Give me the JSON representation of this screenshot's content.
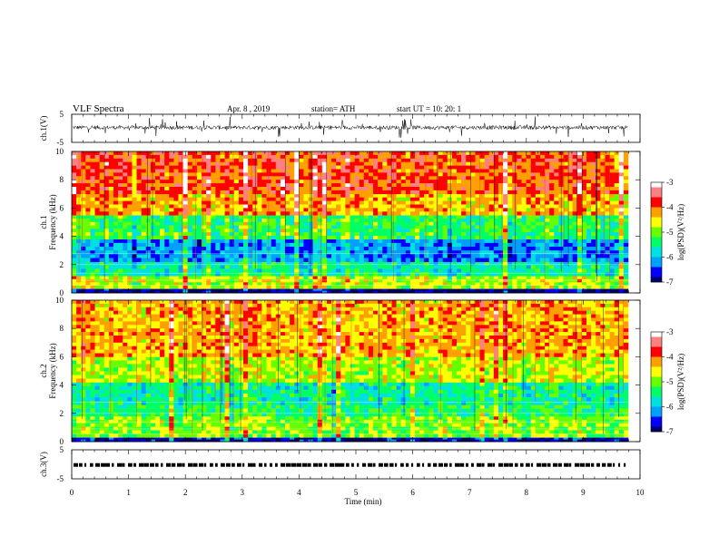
{
  "header": {
    "title": "VLF  Spectra",
    "date": "Apr. 8  , 2019",
    "station": "station= ATH",
    "start": "start  UT  =    10: 20: 1"
  },
  "colors": {
    "scale": [
      "#000066",
      "#0000ff",
      "#00a0ff",
      "#00e0e0",
      "#00ff66",
      "#66ff00",
      "#ffff00",
      "#ffa000",
      "#ff0000",
      "#ff8080",
      "#ffffff"
    ]
  },
  "chart_data": [
    {
      "type": "line",
      "panel": "ch1-waveform",
      "ylabel": "ch.1(V)",
      "ylim": [
        -5,
        5
      ],
      "yticks": [
        "5",
        "-5"
      ],
      "xlim": [
        0,
        10
      ],
      "series": [
        {
          "description": "noisy waveform centered near 0 V",
          "values": [
            0.2,
            -0.4,
            0.5,
            -0.3,
            0.1,
            0.6,
            -0.5,
            0.2,
            -0.1,
            0.4
          ]
        }
      ]
    },
    {
      "type": "heatmap",
      "panel": "ch1-spectrogram",
      "ylabel": "ch.1\nFrequency  (kHz)",
      "ylim": [
        0,
        10
      ],
      "yticks": [
        "0",
        "2",
        "4",
        "6",
        "8",
        "10"
      ],
      "xlim": [
        0,
        10
      ],
      "colorbar": {
        "label": "log(PSD)(V²/Hz)",
        "range": [
          -7,
          -3
        ],
        "ticks": [
          "-3",
          "-4",
          "-5",
          "-6",
          "-7"
        ]
      },
      "bands": [
        {
          "from_khz": 0,
          "to_khz": 0.3,
          "log_psd": -7.0
        },
        {
          "from_khz": 0.3,
          "to_khz": 1.2,
          "log_psd": -4.8
        },
        {
          "from_khz": 1.2,
          "to_khz": 2.2,
          "log_psd": -5.6
        },
        {
          "from_khz": 2.2,
          "to_khz": 3.8,
          "log_psd": -6.2
        },
        {
          "from_khz": 3.8,
          "to_khz": 5.5,
          "log_psd": -5.3
        },
        {
          "from_khz": 5.5,
          "to_khz": 7.0,
          "log_psd": -4.3
        },
        {
          "from_khz": 7.0,
          "to_khz": 10.0,
          "log_psd": -3.9
        }
      ]
    },
    {
      "type": "heatmap",
      "panel": "ch2-spectrogram",
      "ylabel": "ch.2\nFrequency  (kHz)",
      "ylim": [
        0,
        10
      ],
      "yticks": [
        "0",
        "2",
        "4",
        "6",
        "8",
        "10"
      ],
      "xlim": [
        0,
        10
      ],
      "colorbar": {
        "label": "log(PSD)(V²/Hz)",
        "range": [
          -7,
          -3
        ],
        "ticks": [
          "-3",
          "-4",
          "-5",
          "-6",
          "-7"
        ]
      },
      "bands": [
        {
          "from_khz": 0,
          "to_khz": 0.3,
          "log_psd": -6.8
        },
        {
          "from_khz": 0.3,
          "to_khz": 1.8,
          "log_psd": -5.0
        },
        {
          "from_khz": 1.8,
          "to_khz": 2.6,
          "log_psd": -5.4
        },
        {
          "from_khz": 2.6,
          "to_khz": 4.2,
          "log_psd": -5.6
        },
        {
          "from_khz": 4.2,
          "to_khz": 6.0,
          "log_psd": -4.8
        },
        {
          "from_khz": 6.0,
          "to_khz": 10.0,
          "log_psd": -4.3
        }
      ]
    },
    {
      "type": "line",
      "panel": "ch3-waveform",
      "ylabel": "ch.3(V)",
      "ylim": [
        -5,
        5
      ],
      "yticks": [
        "5",
        "-5"
      ],
      "xlim": [
        0,
        10
      ],
      "series": [
        {
          "description": "dashed pulse train near 0 V",
          "values": [
            0,
            0,
            0,
            0,
            0,
            0,
            0,
            0,
            0,
            0
          ]
        }
      ]
    }
  ],
  "xaxis": {
    "label": "Time  (min)",
    "ticks": [
      "0",
      "1",
      "2",
      "3",
      "4",
      "5",
      "6",
      "7",
      "8",
      "9",
      "10"
    ]
  }
}
